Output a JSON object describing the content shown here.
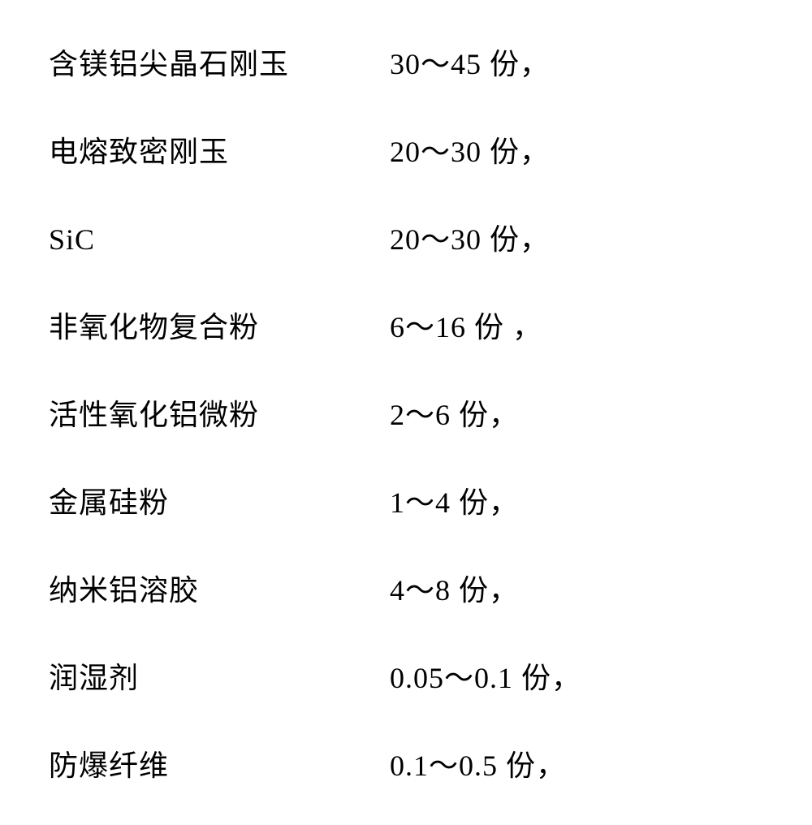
{
  "document": {
    "type": "table",
    "background_color": "#ffffff",
    "text_color": "#000000",
    "font_size": 36,
    "font_family": "SimSun",
    "row_gap": 56,
    "name_column_width": 420,
    "ingredients": [
      {
        "name": "含镁铝尖晶石刚玉",
        "amount": "30～45 份，"
      },
      {
        "name": "电熔致密刚玉",
        "amount": "20～30 份，"
      },
      {
        "name": "SiC",
        "amount": "20～30 份，"
      },
      {
        "name": "非氧化物复合粉",
        "amount": "6～16 份 ，"
      },
      {
        "name": "活性氧化铝微粉",
        "amount": "2～6 份，"
      },
      {
        "name": "金属硅粉",
        "amount": "1～4 份，"
      },
      {
        "name": "纳米铝溶胶",
        "amount": "4～8 份，"
      },
      {
        "name": "润湿剂",
        "amount": "0.05～0.1  份，"
      },
      {
        "name": "防爆纤维",
        "amount": "0.1～0.5 份，"
      }
    ]
  }
}
